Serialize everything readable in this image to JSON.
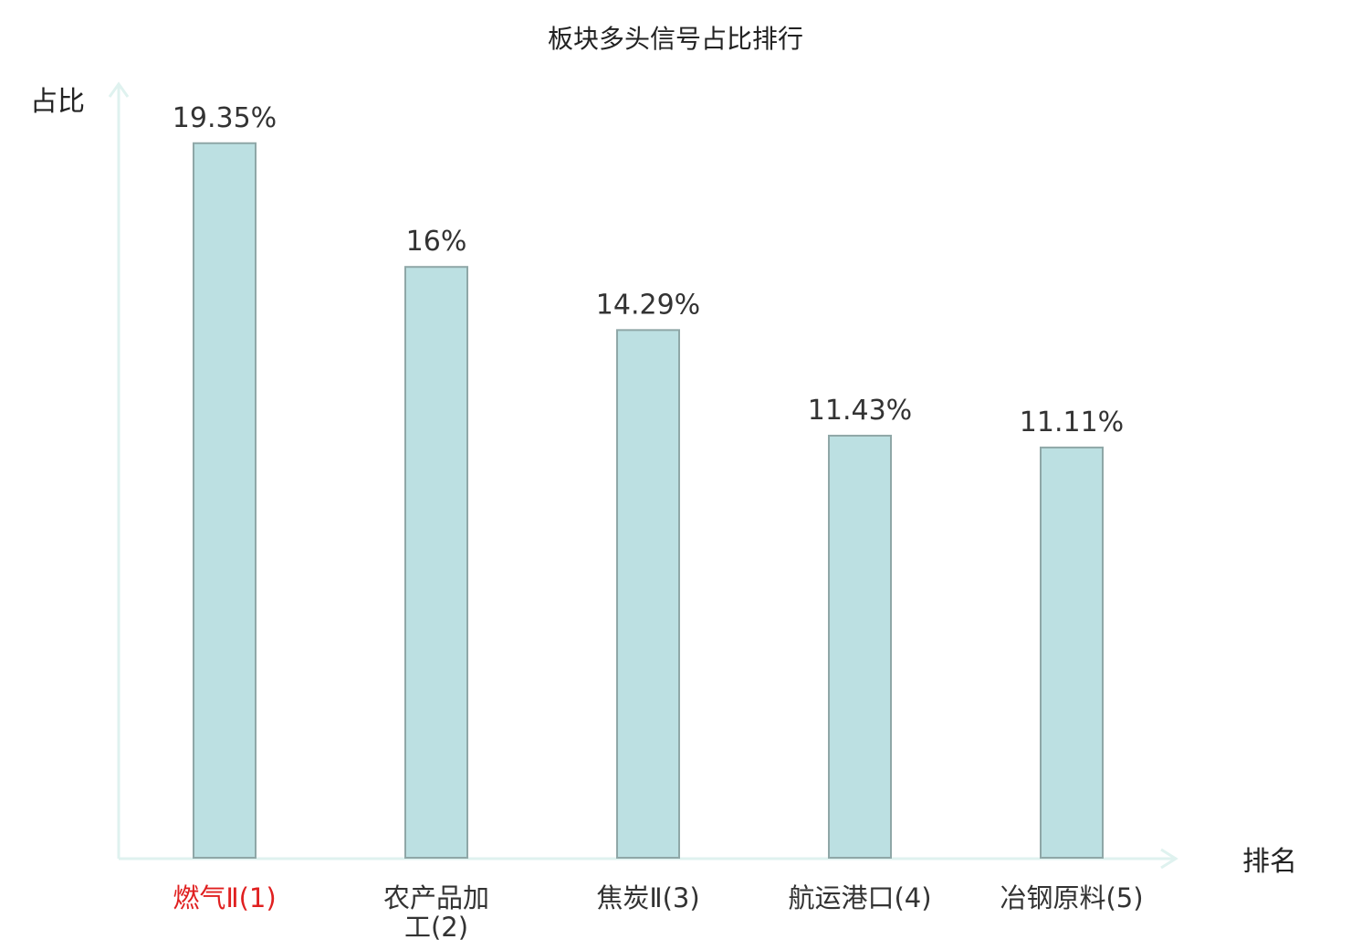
{
  "chart_data": {
    "type": "bar",
    "title": "板块多头信号占比排行",
    "ylabel": "占比",
    "xlabel": "排名",
    "ylim": [
      0,
      20
    ],
    "grid": false,
    "categories": [
      [
        "燃气Ⅱ(1)"
      ],
      [
        "农产品加",
        "工(2)"
      ],
      [
        "焦炭Ⅱ(3)"
      ],
      [
        "航运港口(4)"
      ],
      [
        "冶钢原料(5)"
      ]
    ],
    "values": [
      19.35,
      16,
      14.29,
      11.43,
      11.11
    ],
    "value_labels": [
      "19.35%",
      "16%",
      "14.29%",
      "11.43%",
      "11.11%"
    ],
    "highlight_index": 0
  },
  "colors": {
    "bar_fill": "#bce0e2",
    "bar_stroke": "#8fa7a7",
    "axis": "#dff2ef",
    "highlight_label": "#e02020",
    "label": "#333333"
  }
}
